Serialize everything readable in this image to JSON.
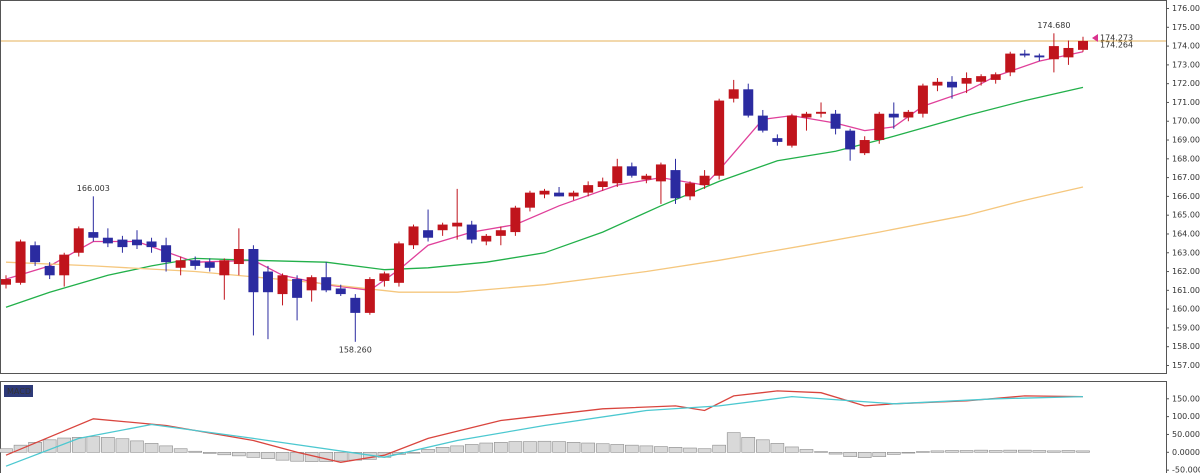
{
  "chart_data": [
    {
      "type": "candlestick",
      "up_color": "#c0141c",
      "down_color": "#2b2ba0",
      "ylim": [
        156.6,
        176.4
      ],
      "yticks": [
        {
          "value": 176,
          "label": "176.000"
        },
        {
          "value": 175,
          "label": "175.000"
        },
        {
          "value": 174,
          "label": "174.000"
        },
        {
          "value": 173,
          "label": "173.000"
        },
        {
          "value": 172,
          "label": "172.000"
        },
        {
          "value": 171,
          "label": "171.000"
        },
        {
          "value": 170,
          "label": "170.000"
        },
        {
          "value": 169,
          "label": "169.000"
        },
        {
          "value": 168,
          "label": "168.000"
        },
        {
          "value": 167,
          "label": "167.000"
        },
        {
          "value": 166,
          "label": "166.000"
        },
        {
          "value": 165,
          "label": "165.000"
        },
        {
          "value": 164,
          "label": "164.000"
        },
        {
          "value": 163,
          "label": "163.000"
        },
        {
          "value": 162,
          "label": "162.000"
        },
        {
          "value": 161,
          "label": "161.000"
        },
        {
          "value": 160,
          "label": "160.000"
        },
        {
          "value": 159,
          "label": "159.000"
        },
        {
          "value": 158,
          "label": "158.000"
        },
        {
          "value": 157,
          "label": "157.000"
        }
      ],
      "candles": [
        [
          161.3,
          161.8,
          161.1,
          161.6
        ],
        [
          161.4,
          163.7,
          161.3,
          163.6
        ],
        [
          163.4,
          163.6,
          162.3,
          162.5
        ],
        [
          162.3,
          162.5,
          161.6,
          161.8
        ],
        [
          161.8,
          163.0,
          161.2,
          162.9
        ],
        [
          163.0,
          164.4,
          162.8,
          164.3
        ],
        [
          164.1,
          166.003,
          163.6,
          163.8
        ],
        [
          163.8,
          164.3,
          163.3,
          163.5
        ],
        [
          163.7,
          163.9,
          163.0,
          163.3
        ],
        [
          163.7,
          164.2,
          163.2,
          163.4
        ],
        [
          163.6,
          163.8,
          163.0,
          163.3
        ],
        [
          163.4,
          163.8,
          162.0,
          162.5
        ],
        [
          162.2,
          162.8,
          161.8,
          162.6
        ],
        [
          162.6,
          162.8,
          162.1,
          162.3
        ],
        [
          162.5,
          162.7,
          162.0,
          162.2
        ],
        [
          161.8,
          162.7,
          160.5,
          162.6
        ],
        [
          162.4,
          164.3,
          161.8,
          163.2
        ],
        [
          163.2,
          163.4,
          158.6,
          160.9
        ],
        [
          162.0,
          162.3,
          158.4,
          160.9
        ],
        [
          160.8,
          161.9,
          160.2,
          161.8
        ],
        [
          161.6,
          161.8,
          159.4,
          160.6
        ],
        [
          161.0,
          161.8,
          160.4,
          161.7
        ],
        [
          161.7,
          162.5,
          160.9,
          161.0
        ],
        [
          161.1,
          161.3,
          160.7,
          160.8
        ],
        [
          160.6,
          160.8,
          158.26,
          159.8
        ],
        [
          159.8,
          161.7,
          159.7,
          161.6
        ],
        [
          161.5,
          162.0,
          161.2,
          161.9
        ],
        [
          161.4,
          163.6,
          161.2,
          163.5
        ],
        [
          163.4,
          164.5,
          163.2,
          164.4
        ],
        [
          164.2,
          165.3,
          163.6,
          163.8
        ],
        [
          164.2,
          164.6,
          163.9,
          164.5
        ],
        [
          164.4,
          166.4,
          163.7,
          164.6
        ],
        [
          164.5,
          164.7,
          163.5,
          163.7
        ],
        [
          163.6,
          164.0,
          163.4,
          163.9
        ],
        [
          163.9,
          164.4,
          163.4,
          164.2
        ],
        [
          164.1,
          165.5,
          163.9,
          165.4
        ],
        [
          165.4,
          166.3,
          165.2,
          166.2
        ],
        [
          166.1,
          166.4,
          165.9,
          166.3
        ],
        [
          166.2,
          166.5,
          166.0,
          166.0
        ],
        [
          166.0,
          166.3,
          165.8,
          166.2
        ],
        [
          166.2,
          166.8,
          166.0,
          166.6
        ],
        [
          166.5,
          167.0,
          166.3,
          166.8
        ],
        [
          166.7,
          168.0,
          166.5,
          167.6
        ],
        [
          167.6,
          167.8,
          167.0,
          167.1
        ],
        [
          166.9,
          167.2,
          166.7,
          167.1
        ],
        [
          166.8,
          167.8,
          165.6,
          167.7
        ],
        [
          167.4,
          168.0,
          165.6,
          165.9
        ],
        [
          166.0,
          166.8,
          165.8,
          166.7
        ],
        [
          166.6,
          167.4,
          166.4,
          167.1
        ],
        [
          167.1,
          171.2,
          166.9,
          171.1
        ],
        [
          171.2,
          172.2,
          171.0,
          171.7
        ],
        [
          171.7,
          172.0,
          170.2,
          170.3
        ],
        [
          170.3,
          170.6,
          169.4,
          169.5
        ],
        [
          169.1,
          169.3,
          168.7,
          168.9
        ],
        [
          168.7,
          170.4,
          168.6,
          170.3
        ],
        [
          170.2,
          170.5,
          169.5,
          170.4
        ],
        [
          170.4,
          171.0,
          170.2,
          170.5
        ],
        [
          170.4,
          170.6,
          169.3,
          169.6
        ],
        [
          169.5,
          169.6,
          167.9,
          168.5
        ],
        [
          168.3,
          169.2,
          168.2,
          169.0
        ],
        [
          169.0,
          170.5,
          168.8,
          170.4
        ],
        [
          170.4,
          171.0,
          169.6,
          170.2
        ],
        [
          170.2,
          170.6,
          170.0,
          170.5
        ],
        [
          170.4,
          172.0,
          170.2,
          171.9
        ],
        [
          171.9,
          172.3,
          171.6,
          172.1
        ],
        [
          172.1,
          172.4,
          171.2,
          171.8
        ],
        [
          172.0,
          172.6,
          171.5,
          172.3
        ],
        [
          172.1,
          172.5,
          171.9,
          172.4
        ],
        [
          172.2,
          172.6,
          172.0,
          172.5
        ],
        [
          172.6,
          173.7,
          172.4,
          173.6
        ],
        [
          173.6,
          173.8,
          173.4,
          173.5
        ],
        [
          173.5,
          173.6,
          173.2,
          173.4
        ],
        [
          173.3,
          174.68,
          172.6,
          174.0
        ],
        [
          173.4,
          174.3,
          173.0,
          173.9
        ],
        [
          173.8,
          174.5,
          173.7,
          174.273
        ]
      ],
      "series": [
        {
          "color": "#e0409a",
          "x": [
            0,
            3,
            6,
            9,
            13,
            17,
            19,
            22,
            25,
            27,
            29,
            32,
            35,
            38,
            42,
            45,
            48,
            49,
            52,
            54,
            57,
            59,
            61,
            63,
            66,
            68,
            71,
            74
          ],
          "values": [
            161.6,
            162.3,
            163.6,
            163.6,
            162.5,
            162.6,
            161.8,
            161.3,
            161.0,
            162.1,
            163.4,
            164.1,
            164.5,
            165.5,
            166.6,
            167.0,
            166.6,
            167.4,
            170.1,
            170.3,
            169.9,
            169.5,
            169.7,
            170.8,
            171.6,
            172.4,
            173.2,
            173.7
          ]
        },
        {
          "color": "#22b04a",
          "x": [
            0,
            3,
            7,
            10,
            13,
            17,
            22,
            26,
            29,
            33,
            37,
            41,
            45,
            49,
            53,
            57,
            61,
            66,
            70,
            74
          ],
          "values": [
            160.1,
            160.9,
            161.8,
            162.3,
            162.7,
            162.6,
            162.5,
            162.1,
            162.2,
            162.5,
            163.0,
            164.1,
            165.5,
            166.8,
            167.9,
            168.4,
            169.2,
            170.3,
            171.1,
            171.8
          ]
        },
        {
          "color": "#f5c77e",
          "x": [
            0,
            6,
            13,
            20,
            27,
            31,
            37,
            44,
            49,
            55,
            60,
            66,
            70,
            74
          ],
          "values": [
            162.5,
            162.3,
            162.0,
            161.5,
            160.9,
            160.9,
            161.3,
            162.0,
            162.6,
            163.4,
            164.1,
            165.0,
            165.8,
            166.5
          ]
        }
      ],
      "price_line": {
        "value": 174.273,
        "color": "#e6b25a"
      },
      "annotations": [
        {
          "x": 6,
          "value": 166.003,
          "label": "166.003",
          "color": "#d9822b",
          "side": "top"
        },
        {
          "x": 24,
          "value": 158.26,
          "label": "158.260",
          "color": "#22a040",
          "side": "bottom"
        },
        {
          "x": 72,
          "value": 174.68,
          "label": "174.680",
          "color": "#d9822b",
          "side": "top"
        }
      ],
      "price_labels": [
        {
          "value": 174.273,
          "label": "174.273",
          "color": "#d9338f"
        },
        {
          "value": 174.264,
          "label": "174.264",
          "color": "#2aa9c4"
        }
      ]
    },
    {
      "type": "macd",
      "label": "MACD",
      "ylim": [
        -58,
        197
      ],
      "yticks": [
        {
          "value": 150,
          "label": "150.0000"
        },
        {
          "value": 100,
          "label": "100.0000"
        },
        {
          "value": 50,
          "label": "50.0000"
        },
        {
          "value": 0,
          "label": "0.0000"
        },
        {
          "value": -50,
          "label": "-50.0000"
        }
      ],
      "histogram": {
        "color": "#d9d9d9",
        "values": [
          10,
          20,
          28,
          35,
          40,
          42,
          44,
          42,
          38,
          32,
          25,
          18,
          10,
          3,
          -3,
          -7,
          -10,
          -14,
          -18,
          -22,
          -25,
          -26,
          -26,
          -24,
          -22,
          -20,
          -14,
          -6,
          0,
          8,
          14,
          18,
          22,
          26,
          28,
          30,
          30,
          31,
          30,
          28,
          26,
          24,
          22,
          20,
          18,
          16,
          14,
          12,
          10,
          20,
          55,
          42,
          35,
          25,
          15,
          8,
          2,
          -5,
          -12,
          -15,
          -12,
          -6,
          -2,
          2,
          4,
          5,
          5,
          6,
          5,
          6,
          6,
          5,
          4,
          5,
          4
        ]
      },
      "series": [
        {
          "color": "#d9453e",
          "x": [
            0,
            6,
            11,
            17,
            20,
            23,
            26,
            29,
            34,
            41,
            46,
            48,
            50,
            53,
            56,
            59,
            61,
            66,
            70,
            74
          ],
          "values": [
            -8,
            94,
            75,
            33,
            0,
            -28,
            -8,
            39,
            89,
            122,
            130,
            117,
            158,
            172,
            167,
            130,
            136,
            144,
            158,
            156
          ]
        },
        {
          "color": "#4cc8d0",
          "x": [
            0,
            5,
            10,
            17,
            26,
            31,
            37,
            44,
            49,
            54,
            61,
            68,
            74
          ],
          "values": [
            -39,
            39,
            78,
            39,
            -14,
            33,
            75,
            117,
            130,
            156,
            136,
            150,
            156
          ]
        }
      ]
    }
  ]
}
